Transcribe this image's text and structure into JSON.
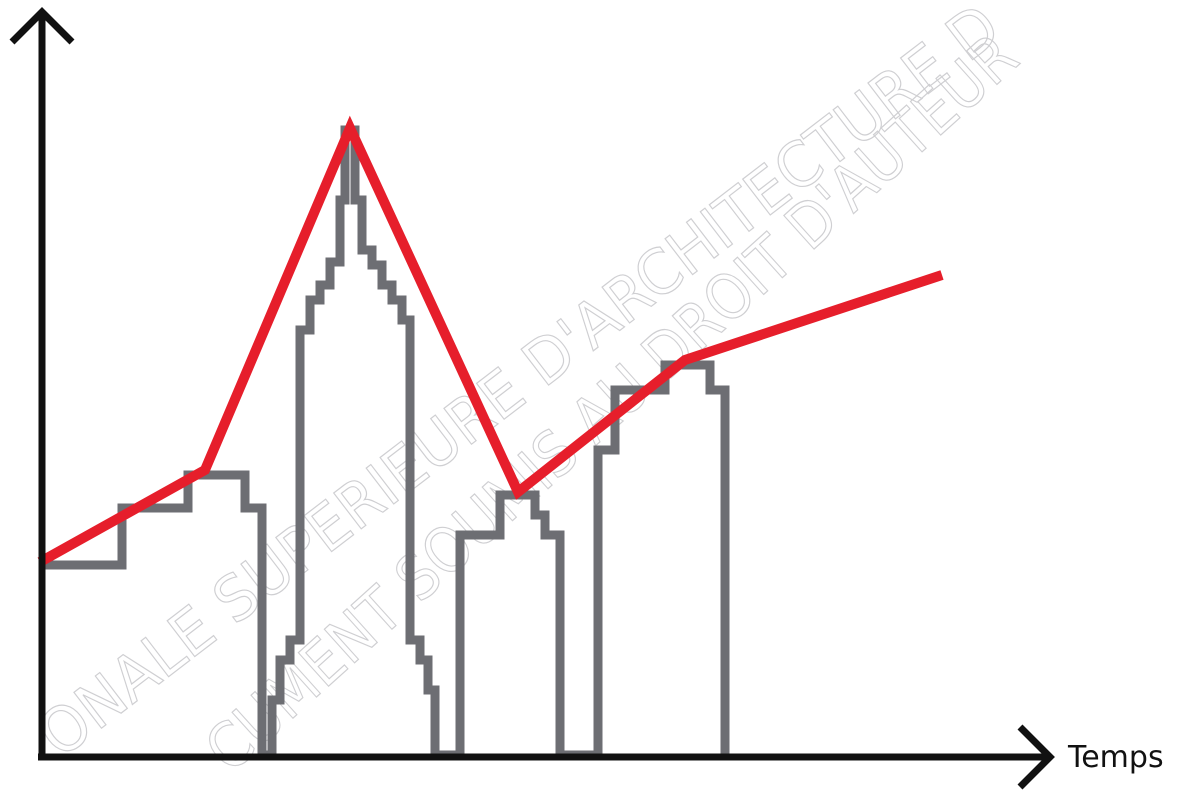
{
  "axis_label": "Temps",
  "watermark": [
    "ONALE SUPERIEURE D'ARCHITECTURE D",
    "CUMENT SOUMIS AU DROIT D'AUTEUR"
  ]
}
